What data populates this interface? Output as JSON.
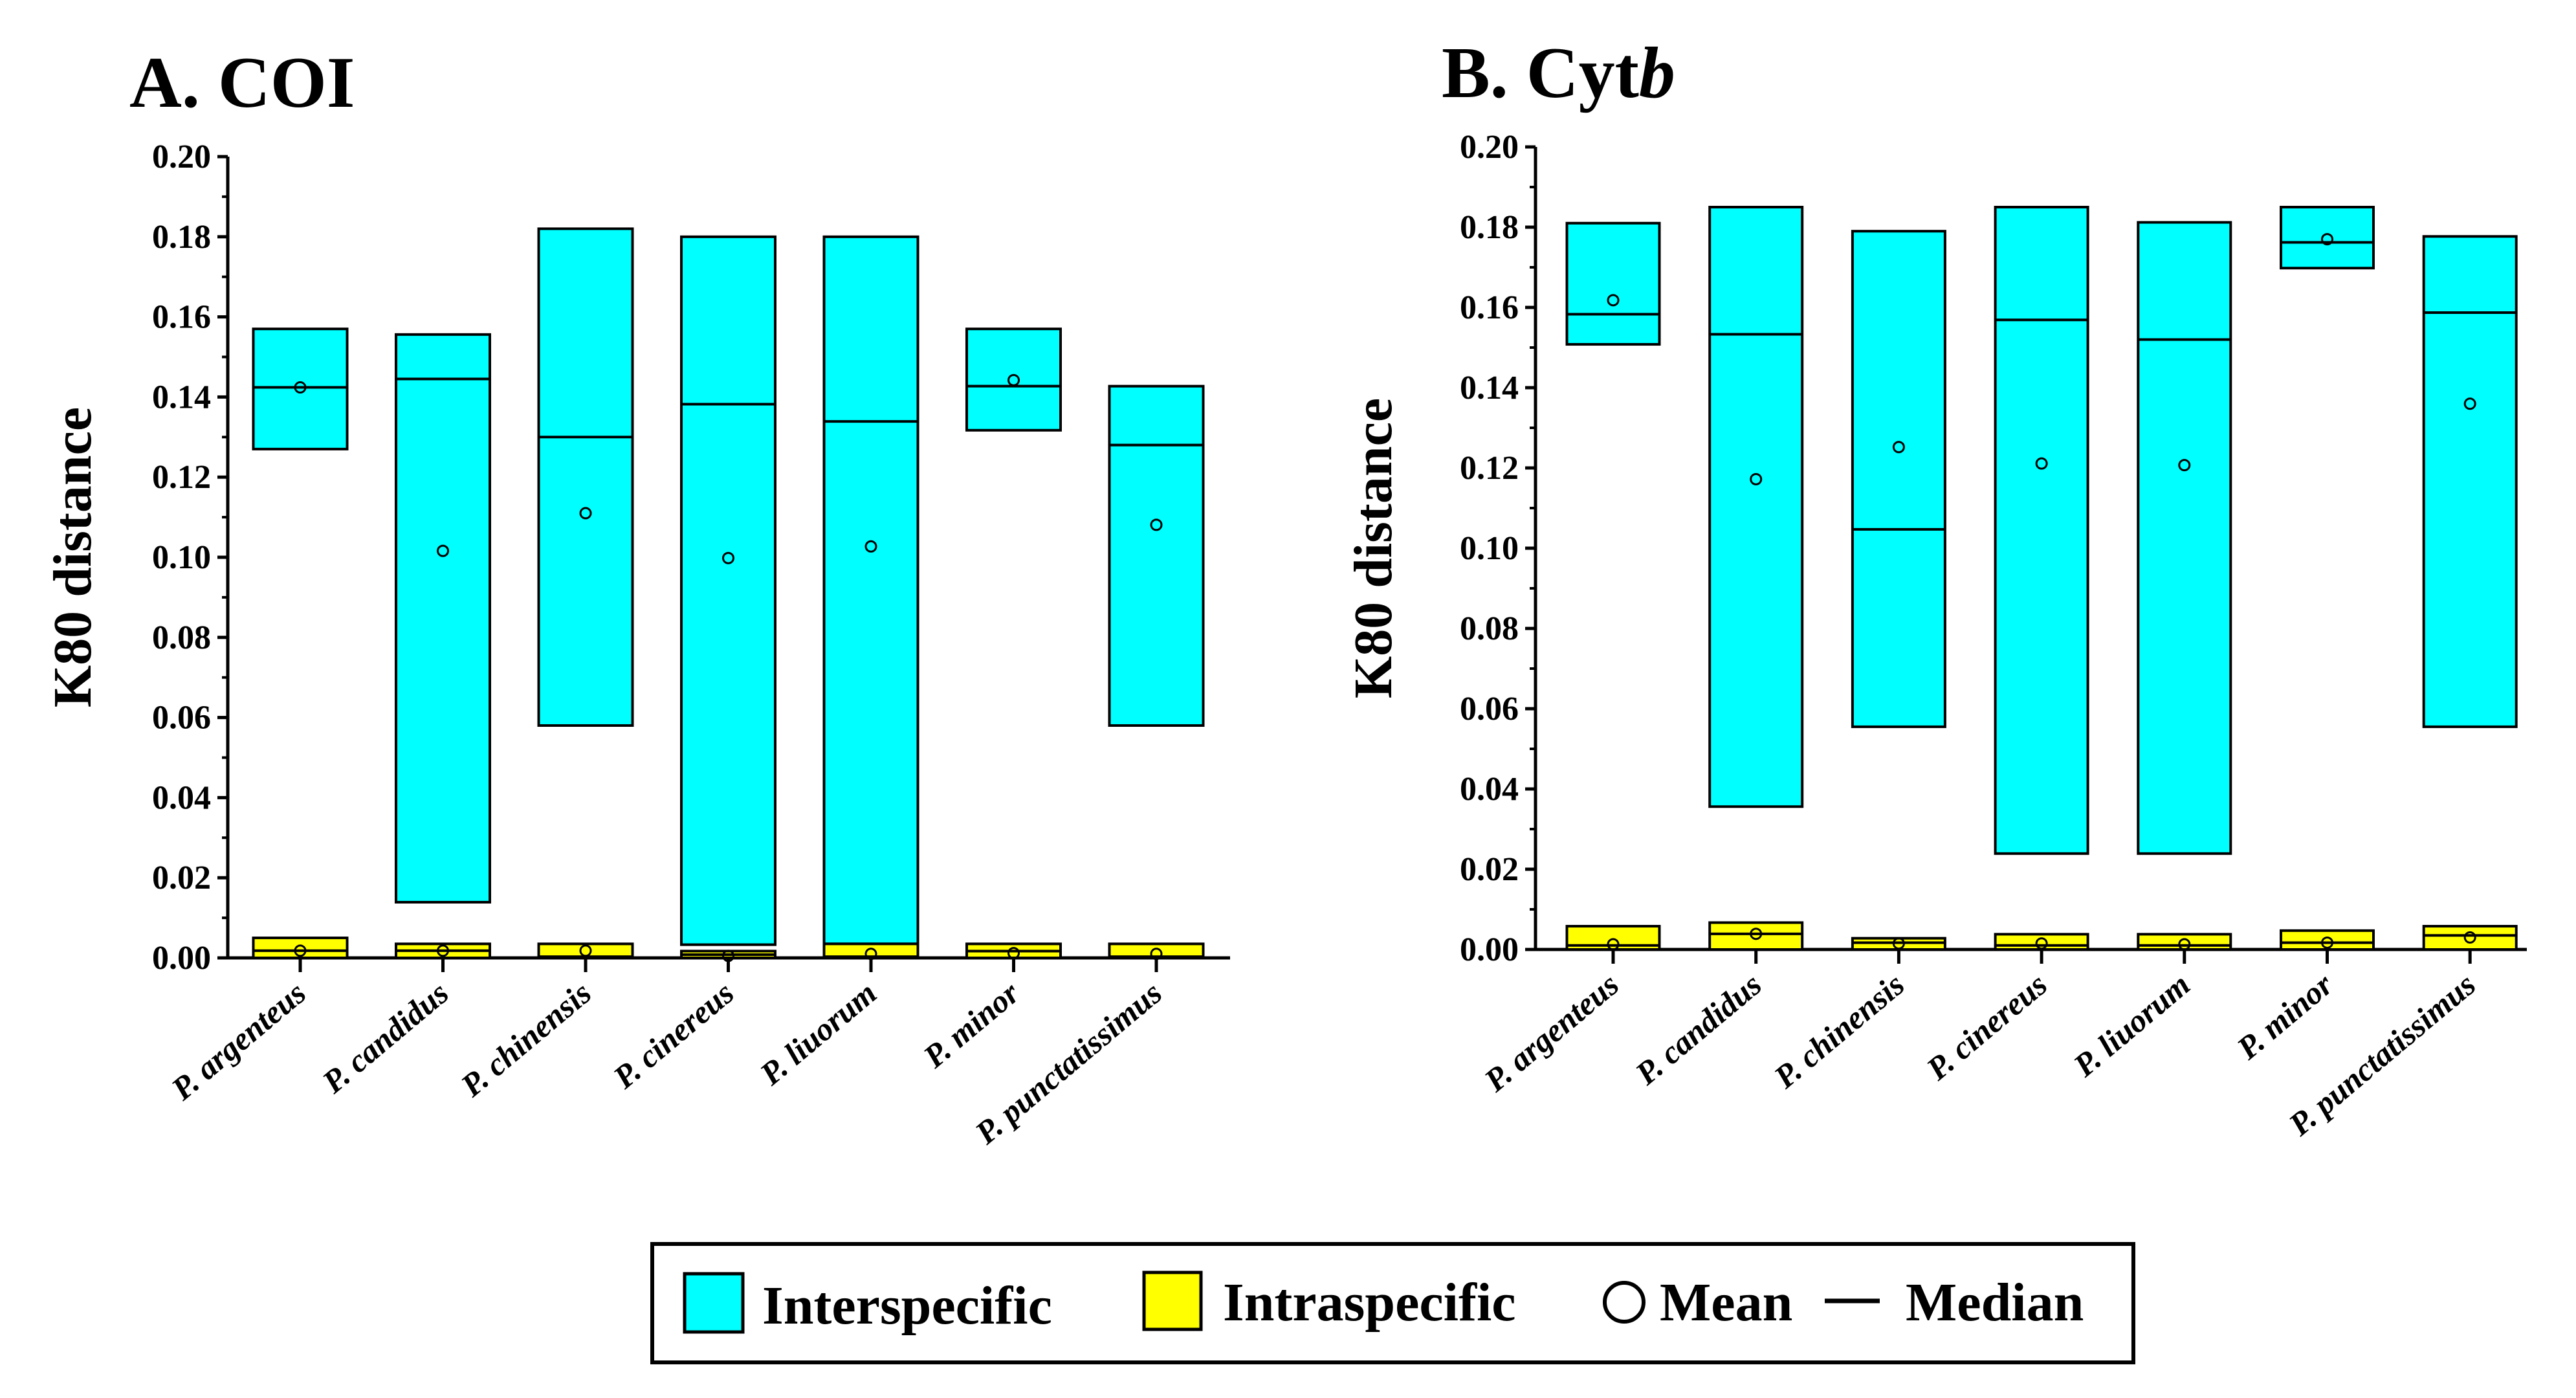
{
  "chart_data": [
    {
      "type": "box",
      "title": "A. COI",
      "ylabel": "K80 distance",
      "xlabel": "",
      "ylim": [
        0,
        0.2
      ],
      "yticks": [
        "0.00",
        "0.02",
        "0.04",
        "0.06",
        "0.08",
        "0.10",
        "0.12",
        "0.14",
        "0.16",
        "0.18",
        "0.20"
      ],
      "categories": [
        "P. argenteus",
        "P. candidus",
        "P. chinensis",
        "P. cinereus",
        "P. liuorum",
        "P. minor",
        "P. punctatissimus"
      ],
      "series": [
        {
          "name": "Interspecific",
          "color": "#00FFFF",
          "min": [
            0.127,
            0.0139,
            0.058,
            0.0033,
            0.0035,
            0.1317,
            0.058
          ],
          "max": [
            0.157,
            0.1556,
            0.182,
            0.18,
            0.18,
            0.157,
            0.1427
          ],
          "median": [
            0.1424,
            0.1445,
            0.13,
            0.1382,
            0.1339,
            0.1427,
            0.128
          ],
          "mean": [
            0.1424,
            0.1016,
            0.111,
            0.0998,
            0.1027,
            0.1442,
            0.1081
          ]
        },
        {
          "name": "Intraspecific",
          "color": "#FFFF00",
          "min": [
            0,
            0,
            0,
            0,
            0,
            0,
            0
          ],
          "max": [
            0.005,
            0.0035,
            0.0035,
            0.0017,
            0.0035,
            0.0035,
            0.0035
          ],
          "median": [
            0.0018,
            0.0018,
            0.0003,
            0.0008,
            0.0003,
            0.0017,
            0.0003
          ],
          "mean": [
            0.0018,
            0.0018,
            0.0018,
            0.0005,
            0.001,
            0.0012,
            0.001
          ]
        }
      ]
    },
    {
      "type": "box",
      "title_prefix": "B. Cyt",
      "title_suffix": "b",
      "ylabel": "K80 distance",
      "xlabel": "",
      "ylim": [
        0,
        0.2
      ],
      "yticks": [
        "0.00",
        "0.02",
        "0.04",
        "0.06",
        "0.08",
        "0.10",
        "0.12",
        "0.14",
        "0.16",
        "0.18",
        "0.20"
      ],
      "categories": [
        "P. argenteus",
        "P. candidus",
        "P. chinensis",
        "P. cinereus",
        "P. liuorum",
        "P. minor",
        "P. punctatissimus"
      ],
      "series": [
        {
          "name": "Interspecific",
          "color": "#00FFFF",
          "min": [
            0.1508,
            0.0356,
            0.0555,
            0.0239,
            0.0239,
            0.1698,
            0.0555
          ],
          "max": [
            0.181,
            0.185,
            0.179,
            0.185,
            0.1812,
            0.185,
            0.1777
          ],
          "median": [
            0.1583,
            0.1533,
            0.1047,
            0.1569,
            0.152,
            0.1762,
            0.1587
          ],
          "mean": [
            0.1618,
            0.1172,
            0.1252,
            0.1211,
            0.1207,
            0.177,
            0.136
          ]
        },
        {
          "name": "Intraspecific",
          "color": "#FFFF00",
          "min": [
            0,
            0,
            0,
            0,
            0,
            0,
            0
          ],
          "max": [
            0.0058,
            0.0067,
            0.0028,
            0.0038,
            0.0038,
            0.0047,
            0.0058
          ],
          "median": [
            0.001,
            0.0039,
            0.0017,
            0.001,
            0.001,
            0.0017,
            0.0035
          ],
          "mean": [
            0.0013,
            0.0039,
            0.0015,
            0.0015,
            0.0013,
            0.0017,
            0.003
          ]
        }
      ]
    }
  ],
  "legend": {
    "interspecific": "Interspecific",
    "intraspecific": "Intraspecific",
    "mean": "Mean",
    "median": "Median"
  }
}
